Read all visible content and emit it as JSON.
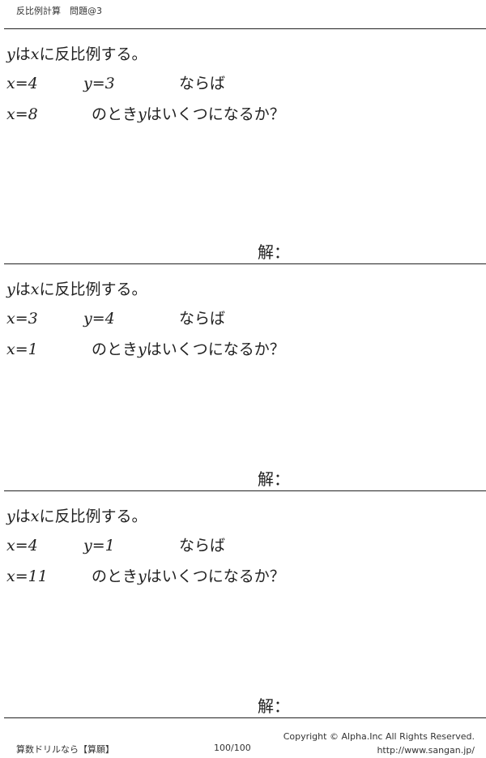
{
  "header": {
    "title": "反比例計算　問題@3"
  },
  "problems": [
    {
      "intro_y": "y",
      "intro_a": "は",
      "intro_x": "x",
      "intro_b": "に反比例する。",
      "given_x": "x=4",
      "given_y": "y=3",
      "given_suffix": "ならば",
      "ask_x": "x=8",
      "ask_a": "のとき",
      "ask_y": "y",
      "ask_b": "はいくつになるか？",
      "answer_label": "解："
    },
    {
      "intro_y": "y",
      "intro_a": "は",
      "intro_x": "x",
      "intro_b": "に反比例する。",
      "given_x": "x=3",
      "given_y": "y=4",
      "given_suffix": "ならば",
      "ask_x": "x=1",
      "ask_a": "のとき",
      "ask_y": "y",
      "ask_b": "はいくつになるか？",
      "answer_label": "解："
    },
    {
      "intro_y": "y",
      "intro_a": "は",
      "intro_x": "x",
      "intro_b": "に反比例する。",
      "given_x": "x=4",
      "given_y": "y=1",
      "given_suffix": "ならば",
      "ask_x": "x=11",
      "ask_a": "のとき",
      "ask_y": "y",
      "ask_b": "はいくつになるか？",
      "answer_label": "解："
    }
  ],
  "footer": {
    "left": "算数ドリルなら【算願】",
    "page": "100/100",
    "copyright": "Copyright ©  Alpha.Inc All Rights Reserved.",
    "url": "http://www.sangan.jp/"
  }
}
